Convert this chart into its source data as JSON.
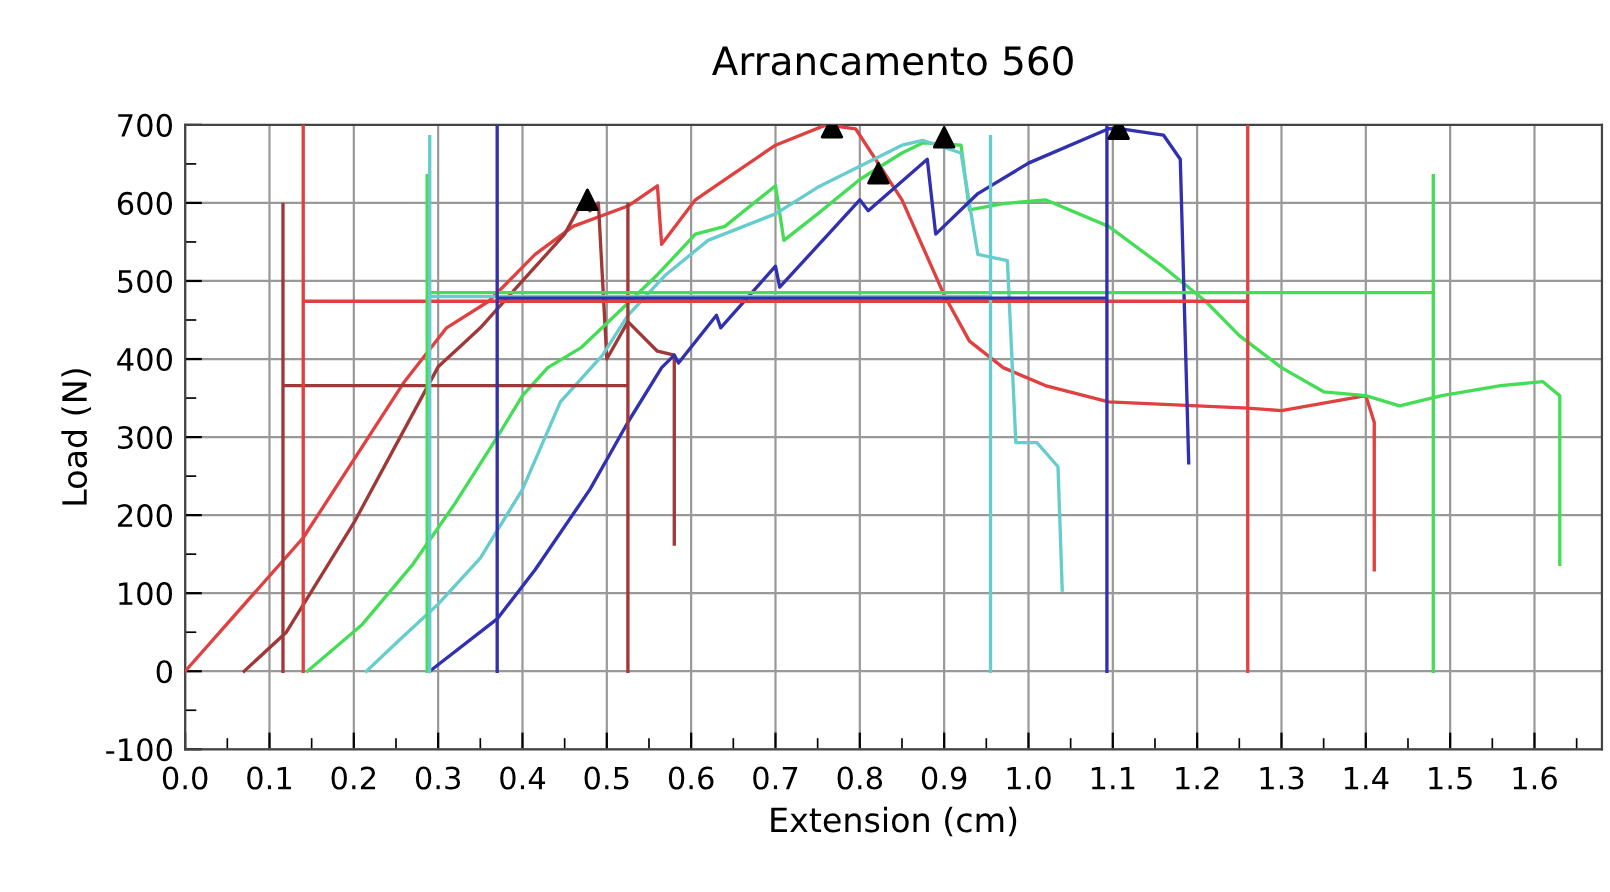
{
  "chart_data": {
    "type": "line",
    "title": "Arrancamento 560",
    "xlabel": "Extension (cm)",
    "ylabel": "Load (N)",
    "xlim": [
      0,
      1.68
    ],
    "ylim": [
      -100,
      700
    ],
    "xticks": [
      {
        "value": 0,
        "label": "0.0"
      },
      {
        "value": 0.05,
        "label": null
      },
      {
        "value": 0.1,
        "label": "0.1"
      },
      {
        "value": 0.15,
        "label": null
      },
      {
        "value": 0.2,
        "label": "0.2"
      },
      {
        "value": 0.25,
        "label": null
      },
      {
        "value": 0.3,
        "label": "0.3"
      },
      {
        "value": 0.35,
        "label": null
      },
      {
        "value": 0.4,
        "label": "0.4"
      },
      {
        "value": 0.45,
        "label": null
      },
      {
        "value": 0.5,
        "label": "0.5"
      },
      {
        "value": 0.55,
        "label": null
      },
      {
        "value": 0.6,
        "label": "0.6"
      },
      {
        "value": 0.65,
        "label": null
      },
      {
        "value": 0.7,
        "label": "0.7"
      },
      {
        "value": 0.75,
        "label": null
      },
      {
        "value": 0.8,
        "label": "0.8"
      },
      {
        "value": 0.85,
        "label": null
      },
      {
        "value": 0.9,
        "label": "0.9"
      },
      {
        "value": 0.95,
        "label": null
      },
      {
        "value": 1.0,
        "label": "1.0"
      },
      {
        "value": 1.05,
        "label": null
      },
      {
        "value": 1.1,
        "label": "1.1"
      },
      {
        "value": 1.15,
        "label": null
      },
      {
        "value": 1.2,
        "label": "1.2"
      },
      {
        "value": 1.25,
        "label": null
      },
      {
        "value": 1.3,
        "label": "1.3"
      },
      {
        "value": 1.35,
        "label": null
      },
      {
        "value": 1.4,
        "label": "1.4"
      },
      {
        "value": 1.45,
        "label": null
      },
      {
        "value": 1.5,
        "label": "1.5"
      },
      {
        "value": 1.55,
        "label": null
      },
      {
        "value": 1.6,
        "label": "1.6"
      },
      {
        "value": 1.65,
        "label": null
      }
    ],
    "yticks": [
      -100,
      {
        "value": -50,
        "label": null
      },
      0,
      {
        "value": 50,
        "label": null
      },
      100,
      {
        "value": 150,
        "label": null
      },
      200,
      {
        "value": 250,
        "label": null
      },
      300,
      {
        "value": 350,
        "label": null
      },
      400,
      {
        "value": 450,
        "label": null
      },
      500,
      {
        "value": 550,
        "label": null
      },
      600,
      {
        "value": 650,
        "label": null
      },
      700
    ],
    "grid": true,
    "series": [
      {
        "color": "#e04040",
        "x": [
          0,
          0.14,
          0.26,
          0.31,
          0.36,
          0.415,
          0.46,
          0.525,
          0.56,
          0.565,
          0.605,
          0.64,
          0.7,
          0.76,
          0.795,
          0.85,
          0.9,
          0.93,
          0.97,
          1.02,
          1.095,
          1.26,
          1.3,
          1.4,
          1.41,
          1.41
        ],
        "values": [
          0,
          171,
          371,
          440,
          474,
          534,
          570,
          596,
          622,
          547,
          604,
          630,
          674,
          700,
          695,
          604,
          482,
          423,
          389,
          366,
          345,
          337,
          334,
          353,
          319,
          130
        ]
      },
      {
        "color": "#a03838",
        "x": [
          0.07,
          0.12,
          0.2,
          0.25,
          0.3,
          0.33,
          0.35,
          0.4,
          0.45,
          0.47,
          0.48,
          0.49,
          0.5,
          0.525,
          0.56,
          0.58,
          0.58
        ],
        "values": [
          0,
          50,
          190,
          290,
          390,
          420,
          440,
          500,
          560,
          600,
          590,
          600,
          400,
          448,
          410,
          405,
          163
        ]
      },
      {
        "color": "#44dd55",
        "x": [
          0.145,
          0.21,
          0.27,
          0.32,
          0.37,
          0.4,
          0.43,
          0.47,
          0.51,
          0.56,
          0.605,
          0.64,
          0.7,
          0.71,
          0.75,
          0.8,
          0.85,
          0.875,
          0.92,
          0.93,
          0.97,
          1.02,
          1.095,
          1.16,
          1.21,
          1.25,
          1.3,
          1.35,
          1.4,
          1.44,
          1.49,
          1.56,
          1.61,
          1.63,
          1.63,
          1.63
        ],
        "values": [
          0,
          60,
          137,
          215,
          300,
          353,
          389,
          415,
          456,
          508,
          560,
          570,
          622,
          552,
          586,
          630,
          664,
          677,
          674,
          591,
          599,
          604,
          570,
          518,
          474,
          430,
          389,
          358,
          353,
          340,
          353,
          366,
          371,
          353,
          259,
          137
        ]
      },
      {
        "color": "#66cccc",
        "x": [
          0.215,
          0.255,
          0.3,
          0.35,
          0.4,
          0.445,
          0.495,
          0.525,
          0.57,
          0.62,
          0.7,
          0.75,
          0.85,
          0.875,
          0.92,
          0.94,
          0.975,
          0.985,
          1.01,
          1.035,
          1.04
        ],
        "values": [
          0,
          41,
          86,
          145,
          233,
          345,
          405,
          456,
          508,
          552,
          586,
          620,
          674,
          680,
          664,
          534,
          526,
          293,
          293,
          262,
          104
        ]
      },
      {
        "color": "#3030b0",
        "x": [
          0.29,
          0.37,
          0.415,
          0.48,
          0.525,
          0.565,
          0.58,
          0.585,
          0.63,
          0.635,
          0.7,
          0.705,
          0.8,
          0.81,
          0.88,
          0.89,
          0.94,
          1.0,
          1.095,
          1.11,
          1.16,
          1.18,
          1.19
        ],
        "values": [
          0,
          67,
          130,
          233,
          319,
          389,
          405,
          395,
          456,
          440,
          519,
          492,
          604,
          590,
          656,
          560,
          612,
          651,
          695,
          695,
          687,
          656,
          267
        ]
      },
      {
        "color": "#a03838",
        "x": [
          0.116,
          0.116,
          null,
          0.116,
          0.525,
          null,
          0.525,
          0.525
        ],
        "values": [
          0,
          598,
          null,
          366,
          366,
          null,
          0,
          598
        ]
      },
      {
        "color": "#e04040",
        "x": [
          0.14,
          0.14,
          null,
          0.14,
          1.26,
          null,
          1.26,
          1.26
        ],
        "values": [
          0,
          700,
          null,
          474,
          474,
          null,
          0,
          700
        ]
      },
      {
        "color": "#44dd55",
        "x": [
          0.287,
          0.287,
          null,
          0.287,
          1.48,
          null,
          1.48,
          1.48
        ],
        "values": [
          0,
          635,
          null,
          485,
          485,
          null,
          0,
          635
        ]
      },
      {
        "color": "#66cccc",
        "x": [
          0.29,
          0.29,
          null,
          0.29,
          0.955,
          null,
          0.955,
          0.955
        ],
        "values": [
          0,
          685,
          null,
          480,
          480,
          null,
          0,
          685
        ]
      },
      {
        "color": "#3030b0",
        "x": [
          0.37,
          0.37,
          null,
          0.37,
          1.093,
          null,
          1.093,
          1.093
        ],
        "values": [
          0,
          700,
          null,
          478,
          478,
          null,
          0,
          700
        ]
      },
      {
        "type": "scatter",
        "marker": "triangle",
        "color": "#000000",
        "x": [
          0.477,
          0.767,
          0.822,
          0.9,
          1.107
        ],
        "values": [
          604,
          697,
          638,
          684,
          695
        ]
      }
    ]
  }
}
